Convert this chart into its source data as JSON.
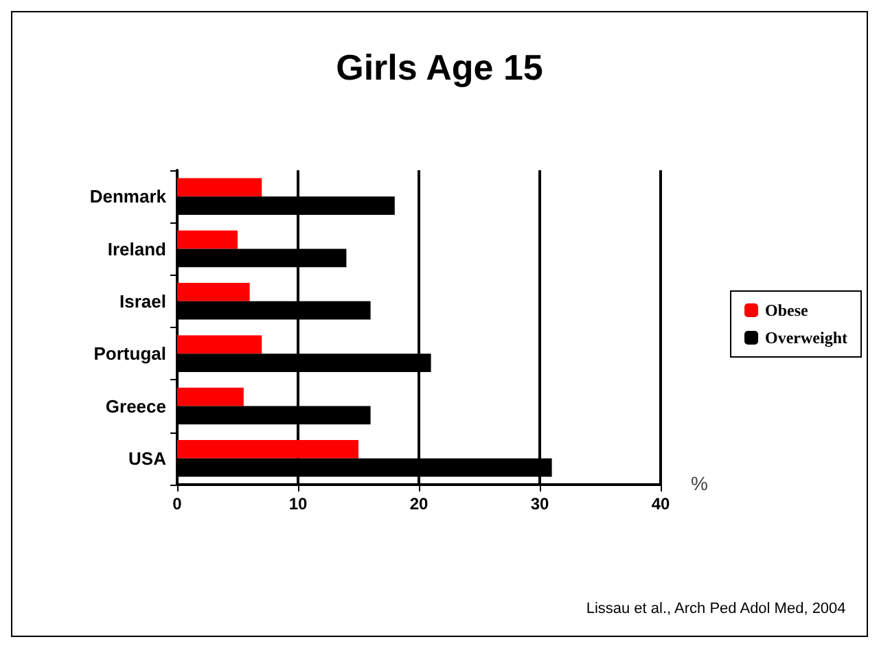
{
  "chart_data": {
    "type": "bar",
    "orientation": "horizontal",
    "title": "Girls Age 15",
    "xlabel": "%",
    "categories": [
      "Denmark",
      "Ireland",
      "Israel",
      "Portugal",
      "Greece",
      "USA"
    ],
    "series": [
      {
        "name": "Obese",
        "color": "#ff0000",
        "values": [
          7,
          5,
          6,
          7,
          5.5,
          15
        ]
      },
      {
        "name": "Overweight",
        "color": "#000000",
        "values": [
          18,
          14,
          16,
          21,
          16,
          31
        ]
      }
    ],
    "xlim": [
      0,
      40
    ],
    "xticks": [
      0,
      10,
      20,
      30,
      40
    ],
    "grid": "x",
    "legend": "right",
    "annotations": [
      "Lissau et al., Arch Ped Adol Med, 2004"
    ]
  }
}
